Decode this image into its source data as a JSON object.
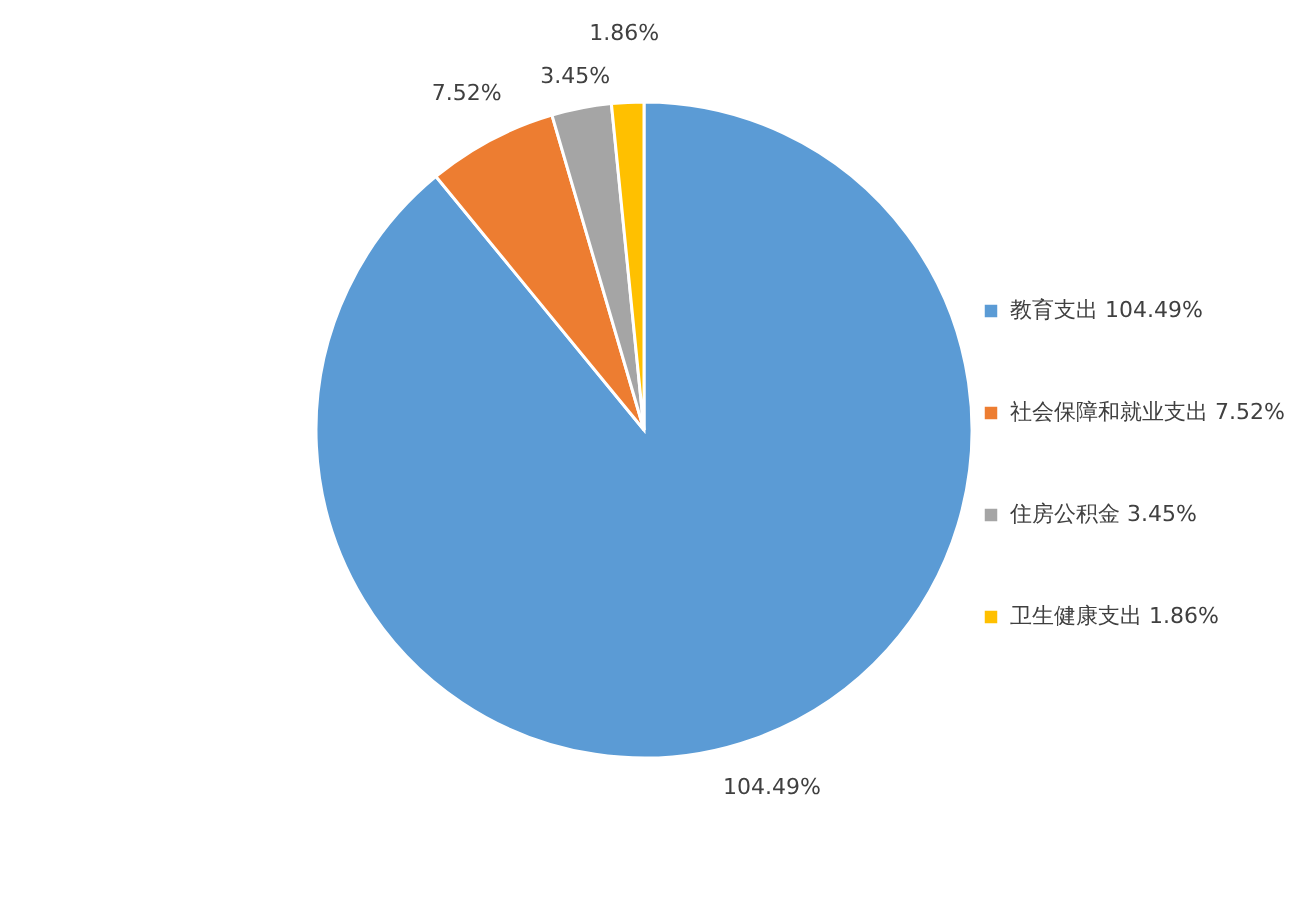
{
  "chart_data": {
    "type": "pie",
    "categories": [
      "教育支出",
      "社会保障和就业支出",
      "住房公积金",
      "卫生健康支出"
    ],
    "values": [
      104.49,
      7.52,
      3.45,
      1.86
    ],
    "value_labels": [
      "104.49%",
      "7.52%",
      "3.45%",
      "1.86%"
    ],
    "colors": [
      "#5b9bd5",
      "#ed7d31",
      "#a5a5a5",
      "#ffc000"
    ],
    "legend": "right"
  }
}
